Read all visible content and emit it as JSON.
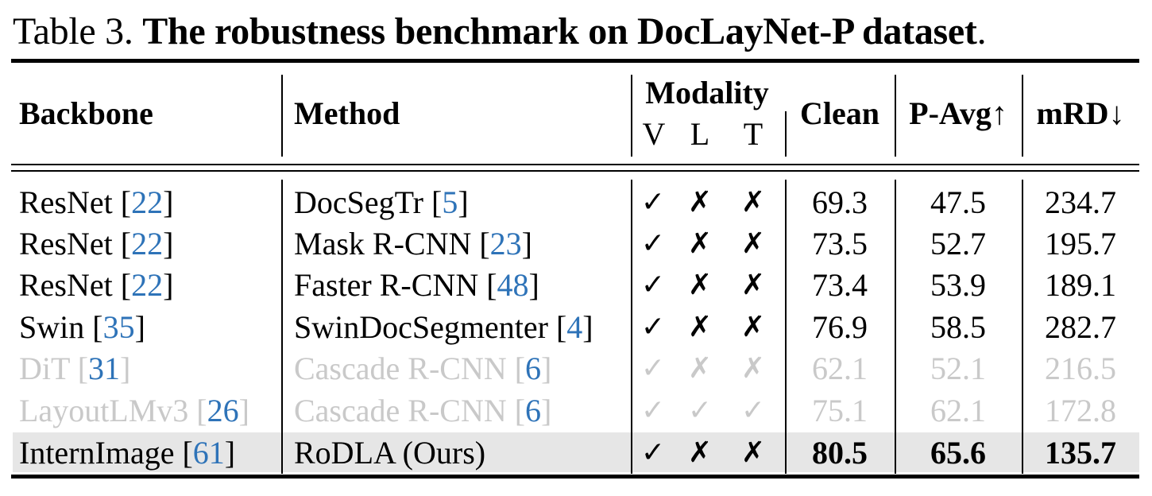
{
  "caption": {
    "prefix": "Table 3.",
    "title": "The robustness benchmark on DocLayNet-P dataset",
    "period": "."
  },
  "headers": {
    "backbone": "Backbone",
    "method": "Method",
    "modality": "Modality",
    "modality_v": "V",
    "modality_l": "L",
    "modality_t": "T",
    "clean": "Clean",
    "pavg": "P-Avg↑",
    "mrd": "mRD↓"
  },
  "rows": [
    {
      "backbone": "ResNet [",
      "bb_cite": "22",
      "bb_close": "]",
      "method": "DocSegTr [",
      "m_cite": "5",
      "m_close": "]",
      "v": "✓",
      "l": "✗",
      "t": "✗",
      "clean": "69.3",
      "pavg": "47.5",
      "mrd": "234.7"
    },
    {
      "backbone": "ResNet [",
      "bb_cite": "22",
      "bb_close": "]",
      "method": "Mask R-CNN  [",
      "m_cite": "23",
      "m_close": "]",
      "v": "✓",
      "l": "✗",
      "t": "✗",
      "clean": "73.5",
      "pavg": "52.7",
      "mrd": "195.7"
    },
    {
      "backbone": "ResNet [",
      "bb_cite": "22",
      "bb_close": "]",
      "method": "Faster R-CNN  [",
      "m_cite": "48",
      "m_close": "]",
      "v": "✓",
      "l": "✗",
      "t": "✗",
      "clean": "73.4",
      "pavg": "53.9",
      "mrd": "189.1"
    },
    {
      "backbone": "Swin [",
      "bb_cite": "35",
      "bb_close": "]",
      "method": "SwinDocSegmenter [",
      "m_cite": "4",
      "m_close": "]",
      "v": "✓",
      "l": "✗",
      "t": "✗",
      "clean": "76.9",
      "pavg": "58.5",
      "mrd": "282.7"
    },
    {
      "backbone": "DiT [",
      "bb_cite": "31",
      "bb_close": "]",
      "method": "Cascade R-CNN [",
      "m_cite": "6",
      "m_close": "]",
      "v": "✓",
      "l": "✗",
      "t": "✗",
      "clean": "62.1",
      "pavg": "52.1",
      "mrd": "216.5"
    },
    {
      "backbone": "LayoutLMv3 [",
      "bb_cite": "26",
      "bb_close": "]",
      "method": "Cascade R-CNN [",
      "m_cite": "6",
      "m_close": "]",
      "v": "✓",
      "l": "✓",
      "t": "✓",
      "clean": "75.1",
      "pavg": "62.1",
      "mrd": "172.8"
    },
    {
      "backbone": "InternImage [",
      "bb_cite": "61",
      "bb_close": "]",
      "method": "RoDLA (Ours)",
      "m_cite": "",
      "m_close": "",
      "v": "✓",
      "l": "✗",
      "t": "✗",
      "clean": "80.5",
      "pavg": "65.6",
      "mrd": "135.7"
    }
  ]
}
